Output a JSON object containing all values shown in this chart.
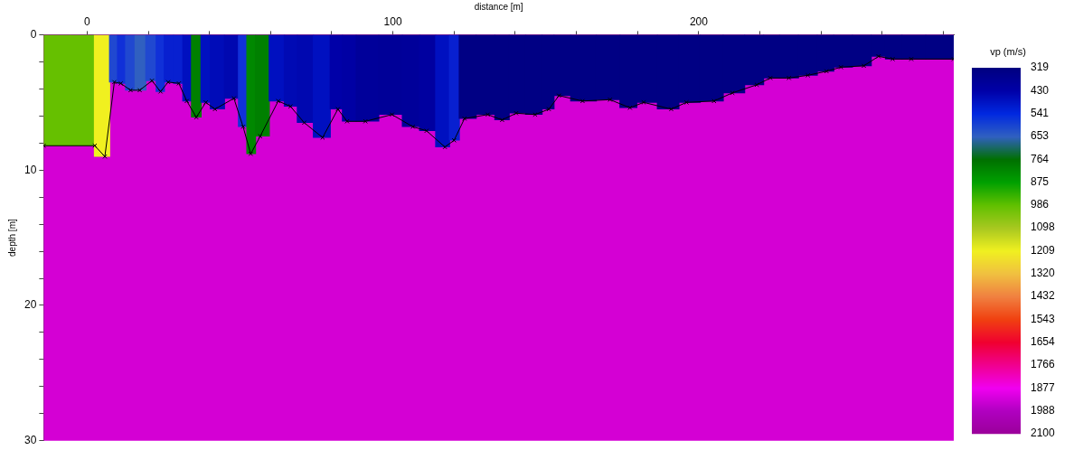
{
  "chart_data": {
    "type": "line",
    "bands": [
      {
        "axis": "y",
        "from": 0,
        "to": 30,
        "color": "#d400d4"
      }
    ],
    "xlabel": "distance [m]",
    "ylabel": "depth [m]",
    "clabel": "vp (m/s)",
    "xlim": [
      -14.2,
      283.4
    ],
    "ylim": [
      30,
      0
    ],
    "xticks": [
      0,
      {
        "value": 20,
        "label": null
      },
      {
        "value": 40,
        "label": null
      },
      {
        "value": 60,
        "label": null
      },
      {
        "value": 80,
        "label": null
      },
      100,
      {
        "value": 120,
        "label": null
      },
      {
        "value": 140,
        "label": null
      },
      {
        "value": 160,
        "label": null
      },
      {
        "value": 180,
        "label": null
      },
      200,
      {
        "value": 220,
        "label": null
      },
      {
        "value": 240,
        "label": null
      },
      {
        "value": 260,
        "label": null
      },
      {
        "value": 280,
        "label": null
      }
    ],
    "yticks": [
      0,
      {
        "value": 2,
        "label": null
      },
      {
        "value": 4,
        "label": null
      },
      {
        "value": 6,
        "label": null
      },
      {
        "value": 8,
        "label": null
      },
      10,
      {
        "value": 12,
        "label": null
      },
      {
        "value": 14,
        "label": null
      },
      {
        "value": 16,
        "label": null
      },
      {
        "value": 18,
        "label": null
      },
      20,
      {
        "value": 22,
        "label": null
      },
      {
        "value": 24,
        "label": null
      },
      {
        "value": 26,
        "label": null
      },
      {
        "value": 28,
        "label": null
      },
      30
    ],
    "clim": [
      319,
      2100
    ],
    "cticks": [
      319,
      430,
      541,
      653,
      764,
      875,
      986,
      1098,
      1209,
      1320,
      1432,
      1543,
      1654,
      1766,
      1877,
      1988,
      2100
    ],
    "grid": false,
    "legend": false,
    "marker": "cross",
    "series": [
      {
        "type": "bar",
        "x": [
          -10,
          -1,
          5.8,
          8.9,
          11,
          14.2,
          17.2,
          21.2,
          24,
          26.5,
          30,
          32.6,
          35.7,
          38.8,
          41.8,
          48,
          51,
          53.5,
          56.6,
          62.5,
          66.5,
          71,
          77,
          82,
          85,
          91,
          99.7,
          106.5,
          111,
          117,
          120,
          123.4,
          131,
          135.7,
          140.3,
          146.5,
          151,
          154.3,
          162,
          171,
          177.5,
          182,
          191,
          196,
          205,
          211,
          219,
          223.4,
          229.5,
          235.7,
          241.8,
          246.5,
          254,
          258.8,
          263.4,
          269.5,
          279
        ],
        "values": [
          8.2,
          8.2,
          9.0,
          3.5,
          3.6,
          4.1,
          4.1,
          3.4,
          4.2,
          3.5,
          3.6,
          4.9,
          6.1,
          5.0,
          5.5,
          4.7,
          6.8,
          8.8,
          7.5,
          4.9,
          5.3,
          6.5,
          7.6,
          5.5,
          6.4,
          6.4,
          5.9,
          6.8,
          7.1,
          8.3,
          7.8,
          6.2,
          5.9,
          6.3,
          5.8,
          5.9,
          5.5,
          4.5,
          4.9,
          4.8,
          5.4,
          5.0,
          5.5,
          5.0,
          4.9,
          4.3,
          3.7,
          3.2,
          3.2,
          3.0,
          2.7,
          2.4,
          2.3,
          1.6,
          1.8,
          1.8,
          1.8
        ],
        "colors": [
          "#66c000",
          "#66c000",
          "#f0f020",
          "#2048d0",
          "#1030d8",
          "#2048d0",
          "#3060c0",
          "#2048d0",
          "#1030d8",
          "#0820d0",
          "#0820d0",
          "#0010c0",
          "#008000",
          "#0010c0",
          "#000cb8",
          "#0008b0",
          "#1030d8",
          "#008800",
          "#008000",
          "#0010c0",
          "#000ab4",
          "#0008b0",
          "#0010c0",
          "#0000a8",
          "#0000a4",
          "#00009a",
          "#000098",
          "#00009a",
          "#0000a0",
          "#0010c0",
          "#0820d0",
          "#000084",
          "#000084",
          "#000084",
          "#000084",
          "#000084",
          "#000084",
          "#000084",
          "#000084",
          "#000084",
          "#000084",
          "#000084",
          "#000084",
          "#000084",
          "#000084",
          "#000084",
          "#000084",
          "#000084",
          "#000084",
          "#000084",
          "#000084",
          "#000084",
          "#000084",
          "#000084",
          "#000084",
          "#000084",
          "#000084"
        ]
      },
      {
        "color": "#000000",
        "x": [
          -14.2,
          2.5,
          5.8,
          8.9,
          11,
          14.2,
          17.2,
          21.2,
          24,
          26.5,
          30,
          32.6,
          35.7,
          38.8,
          41.8,
          48,
          51,
          53.5,
          56.6,
          62.5,
          66.5,
          71,
          77,
          82,
          85,
          91,
          99.7,
          106.5,
          111,
          117,
          120,
          123.4,
          131,
          135.7,
          140.3,
          146.5,
          151,
          154.3,
          162,
          171,
          177.5,
          182,
          191,
          196,
          205,
          211,
          219,
          223.4,
          229.5,
          235.7,
          241.8,
          246.5,
          254,
          258.8,
          263.4,
          269.5,
          283.4
        ],
        "values": [
          8.2,
          8.2,
          9.0,
          3.5,
          3.6,
          4.1,
          4.1,
          3.4,
          4.2,
          3.5,
          3.6,
          4.9,
          6.1,
          5.0,
          5.5,
          4.7,
          6.8,
          8.8,
          7.5,
          4.9,
          5.3,
          6.5,
          7.6,
          5.5,
          6.4,
          6.4,
          5.9,
          6.8,
          7.1,
          8.3,
          7.8,
          6.2,
          5.9,
          6.3,
          5.8,
          5.9,
          5.5,
          4.5,
          4.9,
          4.8,
          5.4,
          5.0,
          5.5,
          5.0,
          4.9,
          4.3,
          3.7,
          3.2,
          3.2,
          3.0,
          2.7,
          2.4,
          2.3,
          1.6,
          1.8,
          1.8,
          1.8
        ]
      }
    ]
  }
}
